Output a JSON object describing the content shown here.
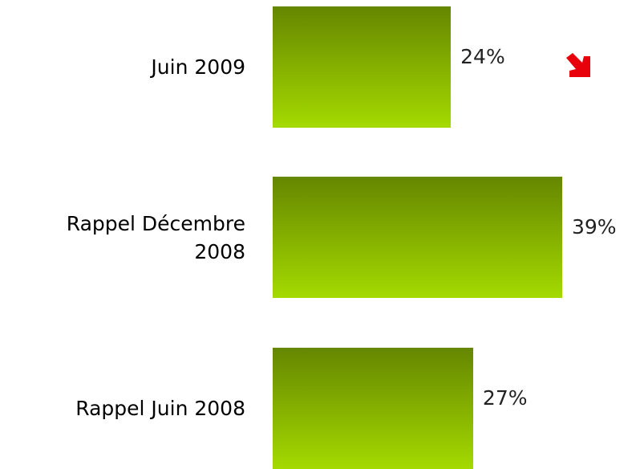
{
  "chart_data": {
    "type": "bar",
    "categories": [
      "Juin 2009",
      "Rappel Décembre 2008",
      "Rappel Juin 2008"
    ],
    "values": [
      24,
      39,
      27
    ],
    "value_labels": [
      "24%",
      "39%",
      "27%"
    ],
    "color_top": "#658600",
    "color_bottom": "#a4da00"
  }
}
